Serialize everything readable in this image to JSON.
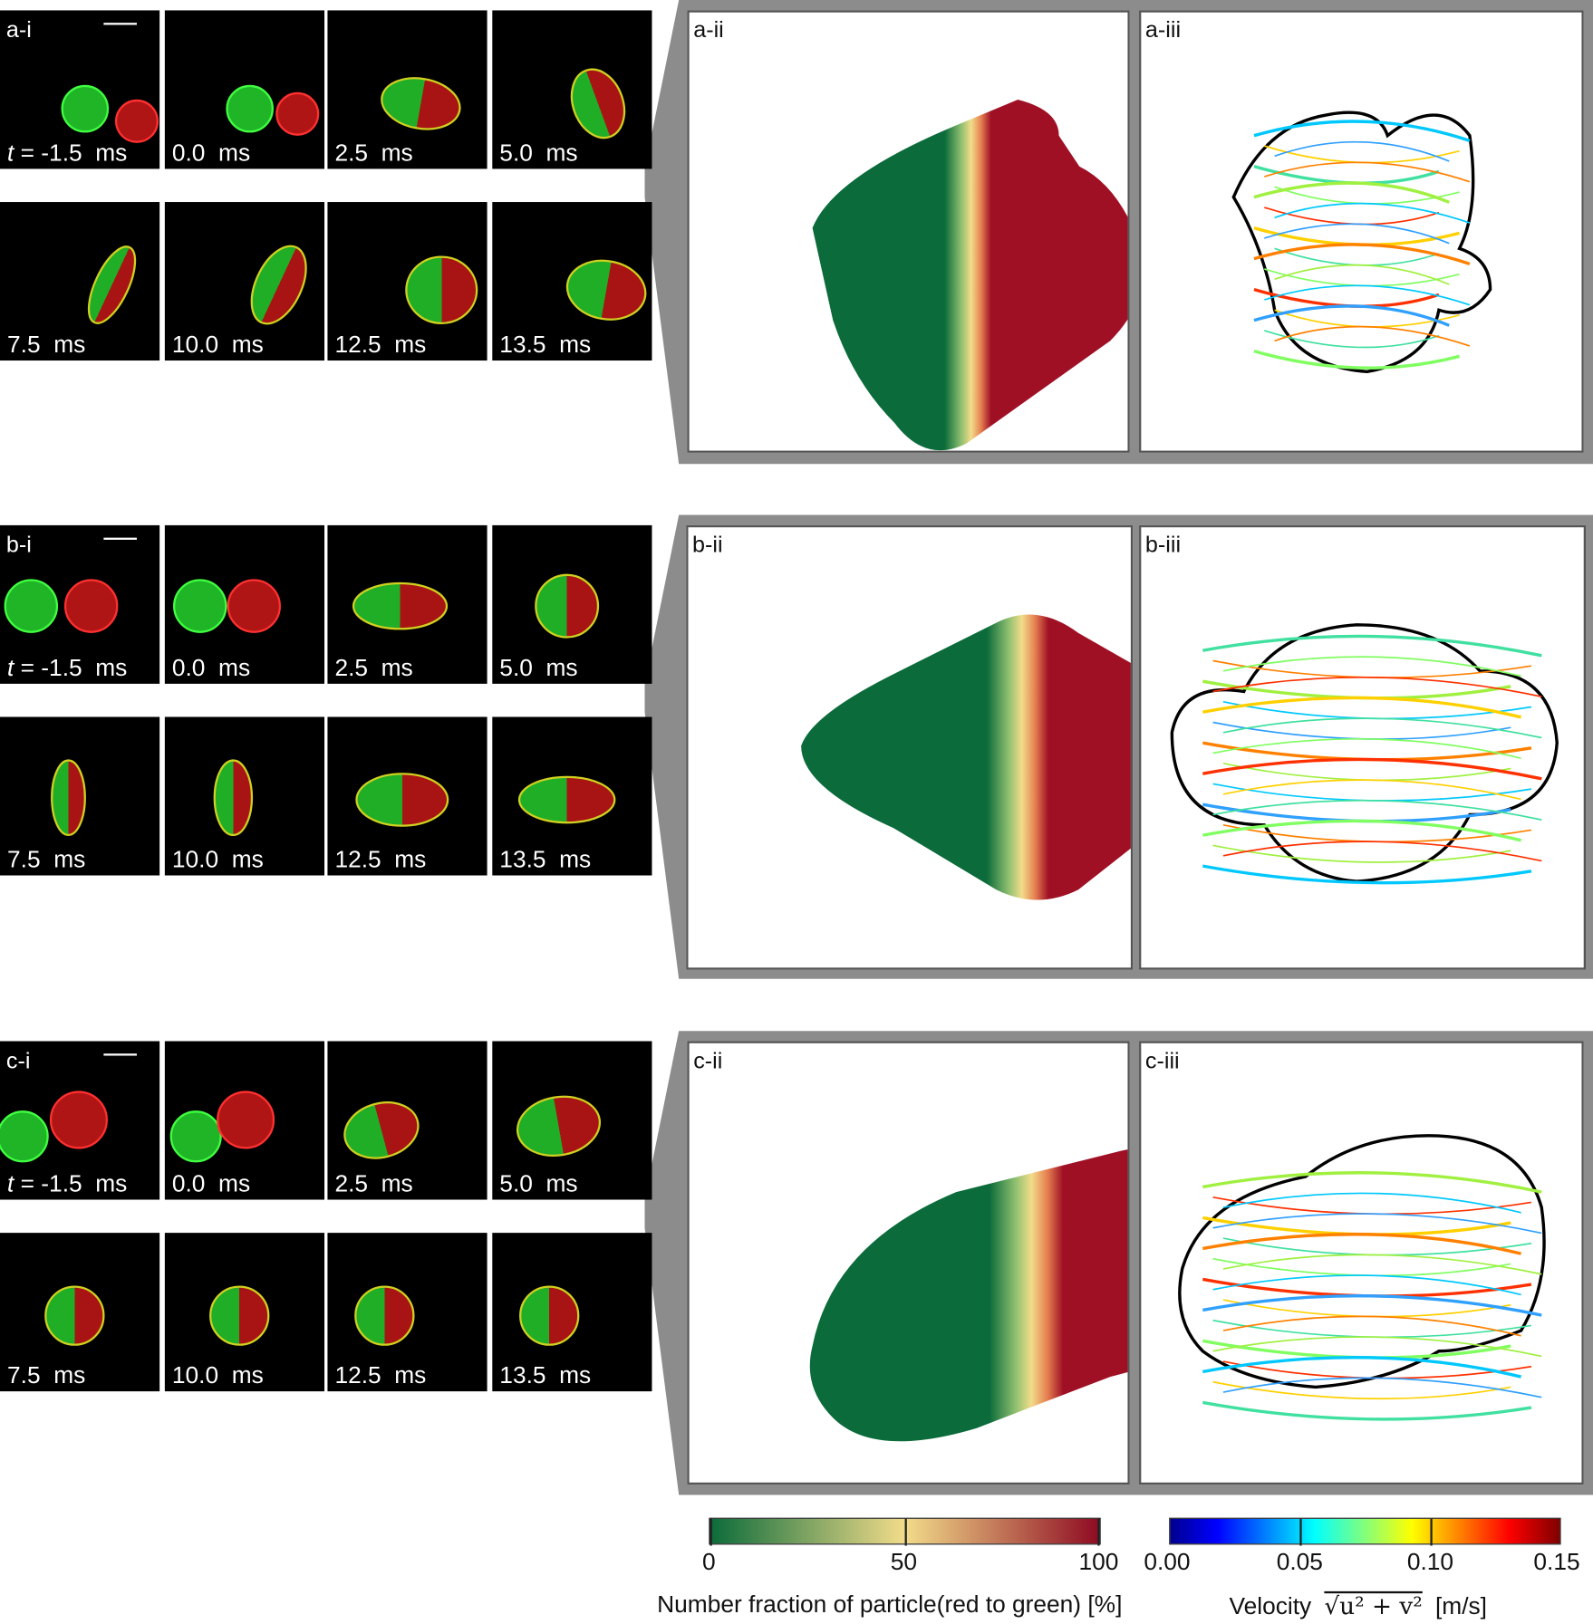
{
  "rows": [
    {
      "id": "a",
      "panel_i": "a-i",
      "panel_ii": "a-ii",
      "panel_iii": "a-iii"
    },
    {
      "id": "b",
      "panel_i": "b-i",
      "panel_ii": "b-ii",
      "panel_iii": "b-iii"
    },
    {
      "id": "c",
      "panel_i": "c-i",
      "panel_ii": "c-ii",
      "panel_iii": "c-iii"
    }
  ],
  "time_prefix": "t",
  "times": [
    "= -1.5  ms",
    "0.0  ms",
    "2.5  ms",
    "5.0  ms",
    "7.5  ms",
    "10.0  ms",
    "12.5  ms",
    "13.5  ms"
  ],
  "colorbars": {
    "fraction": {
      "title": "Number fraction of particle(red to green) [%]",
      "ticks": [
        "0",
        "50",
        "100"
      ],
      "range": [
        0,
        100
      ],
      "colors": [
        "#0b6b3a",
        "#f2dc8a",
        "#8e0a22"
      ]
    },
    "velocity": {
      "title_prefix": "Velocity",
      "title_formula": "√u² + v²",
      "title_unit": "[m/s]",
      "ticks": [
        "0.00",
        "0.05",
        "0.10",
        "0.15"
      ],
      "range": [
        0,
        0.15
      ],
      "colors": [
        "#00008f",
        "#0000ff",
        "#00ffff",
        "#ffff00",
        "#ff0000",
        "#800000"
      ]
    }
  },
  "colors": {
    "panel_gray": "#8c8c8c",
    "green": "#22c32a",
    "red": "#d01818"
  }
}
